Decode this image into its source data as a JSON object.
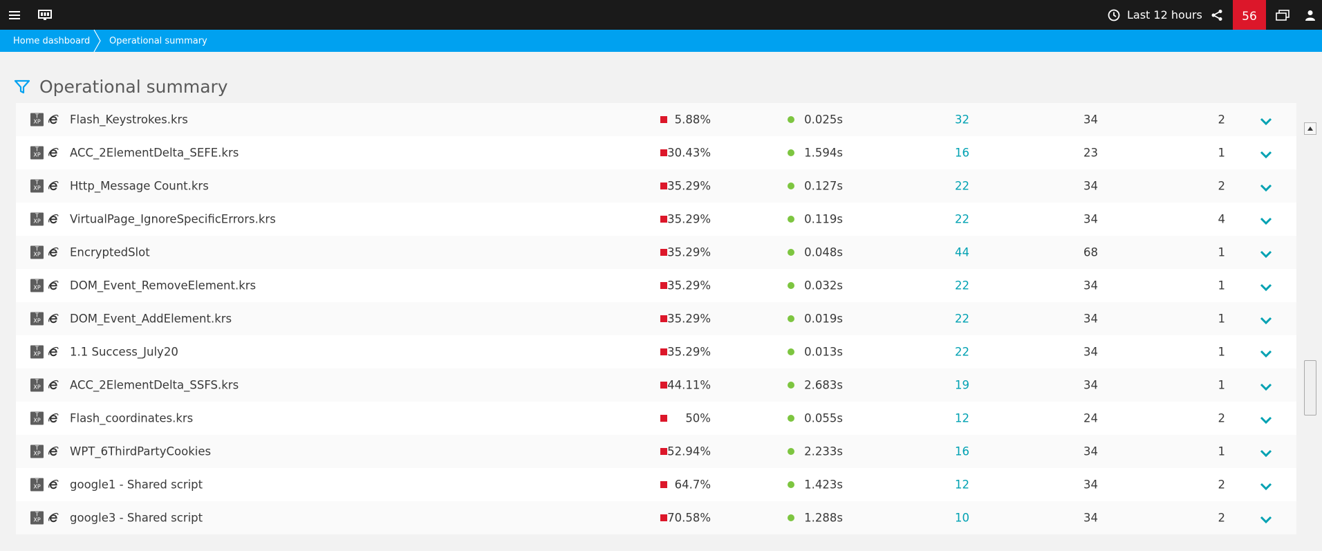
{
  "topbar": {
    "time_range_label": "Last 12 hours",
    "notification_count": "56",
    "colors": {
      "bar": "#1a1a1a",
      "badge": "#dc172a"
    }
  },
  "breadcrumb": {
    "items": [
      "Home dashboard",
      "Operational summary"
    ],
    "color": "#00a1f0"
  },
  "page": {
    "title": "Operational summary"
  },
  "table": {
    "rows": [
      {
        "name": "Flash_Keystrokes.krs",
        "percent": "5.88%",
        "time": "0.025s",
        "count": "32",
        "total": "34",
        "extra": "2"
      },
      {
        "name": "ACC_2ElementDelta_SEFE.krs",
        "percent": "30.43%",
        "time": "1.594s",
        "count": "16",
        "total": "23",
        "extra": "1"
      },
      {
        "name": "Http_Message Count.krs",
        "percent": "35.29%",
        "time": "0.127s",
        "count": "22",
        "total": "34",
        "extra": "2"
      },
      {
        "name": "VirtualPage_IgnoreSpecificErrors.krs",
        "percent": "35.29%",
        "time": "0.119s",
        "count": "22",
        "total": "34",
        "extra": "4"
      },
      {
        "name": "EncryptedSlot",
        "percent": "35.29%",
        "time": "0.048s",
        "count": "44",
        "total": "68",
        "extra": "1"
      },
      {
        "name": "DOM_Event_RemoveElement.krs",
        "percent": "35.29%",
        "time": "0.032s",
        "count": "22",
        "total": "34",
        "extra": "1"
      },
      {
        "name": "DOM_Event_AddElement.krs",
        "percent": "35.29%",
        "time": "0.019s",
        "count": "22",
        "total": "34",
        "extra": "1"
      },
      {
        "name": "1.1 Success_July20",
        "percent": "35.29%",
        "time": "0.013s",
        "count": "22",
        "total": "34",
        "extra": "1"
      },
      {
        "name": "ACC_2ElementDelta_SSFS.krs",
        "percent": "44.11%",
        "time": "2.683s",
        "count": "19",
        "total": "34",
        "extra": "1"
      },
      {
        "name": "Flash_coordinates.krs",
        "percent": "50%",
        "time": "0.055s",
        "count": "12",
        "total": "24",
        "extra": "2"
      },
      {
        "name": "WPT_6ThirdPartyCookies",
        "percent": "52.94%",
        "time": "2.233s",
        "count": "16",
        "total": "34",
        "extra": "1"
      },
      {
        "name": "google1 - Shared script",
        "percent": "64.7%",
        "time": "1.423s",
        "count": "12",
        "total": "34",
        "extra": "2"
      },
      {
        "name": "google3 - Shared script",
        "percent": "70.58%",
        "time": "1.288s",
        "count": "10",
        "total": "34",
        "extra": "2"
      }
    ],
    "icons": {
      "type_badge_top": "T",
      "type_badge_bottom": "XP",
      "browser": "internet-explorer-icon"
    },
    "colors": {
      "error": "#dc172a",
      "ok": "#7dc540",
      "link": "#00a1b2"
    }
  }
}
